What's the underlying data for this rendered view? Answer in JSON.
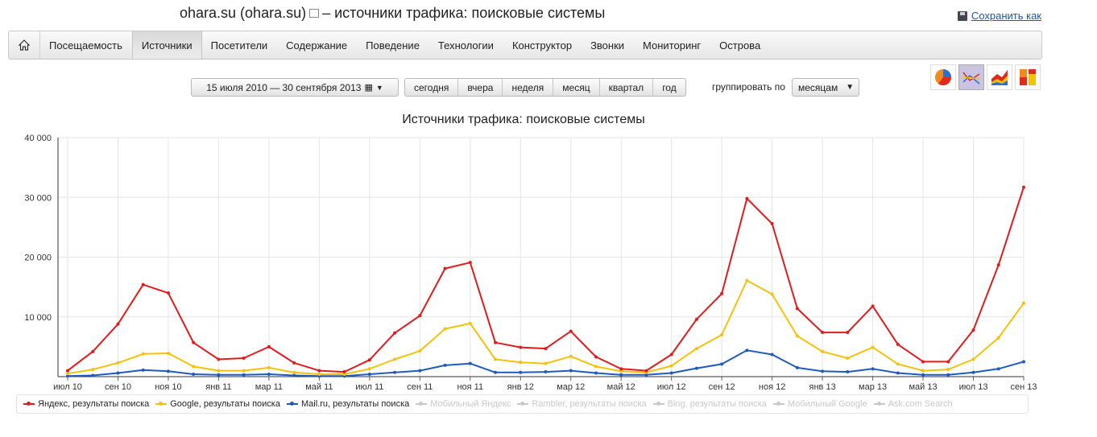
{
  "header": {
    "title": "ohara.su (ohara.su)",
    "title_suffix": "– источники трафика: поисковые системы",
    "save_label": "Сохранить как"
  },
  "nav": {
    "items": [
      {
        "label": "Посещаемость",
        "active": false
      },
      {
        "label": "Источники",
        "active": true
      },
      {
        "label": "Посетители",
        "active": false
      },
      {
        "label": "Содержание",
        "active": false
      },
      {
        "label": "Поведение",
        "active": false
      },
      {
        "label": "Технологии",
        "active": false
      },
      {
        "label": "Конструктор",
        "active": false
      },
      {
        "label": "Звонки",
        "active": false
      },
      {
        "label": "Мониторинг",
        "active": false
      },
      {
        "label": "Острова",
        "active": false
      }
    ]
  },
  "toolbar": {
    "date_range": "15 июля 2010 — 30 сентября 2013",
    "periods": [
      "сегодня",
      "вчера",
      "неделя",
      "месяц",
      "квартал",
      "год"
    ],
    "group_label": "группировать по",
    "group_value": "месяцам"
  },
  "chart_data": {
    "type": "line",
    "title": "Источники трафика: поисковые системы",
    "ylim": [
      0,
      40000
    ],
    "yticks": [
      "0",
      "10 000",
      "20 000",
      "30 000",
      "40 000"
    ],
    "xticklabels": [
      "июл 10",
      "сен 10",
      "ноя 10",
      "янв 11",
      "мар 11",
      "май 11",
      "июл 11",
      "сен 11",
      "ноя 11",
      "янв 12",
      "мар 12",
      "май 12",
      "июл 12",
      "сен 12",
      "ноя 12",
      "янв 13",
      "мар 13",
      "май 13",
      "июл 13",
      "сен 13"
    ],
    "categories": [
      "2010-07",
      "2010-08",
      "2010-09",
      "2010-10",
      "2010-11",
      "2010-12",
      "2011-01",
      "2011-02",
      "2011-03",
      "2011-04",
      "2011-05",
      "2011-06",
      "2011-07",
      "2011-08",
      "2011-09",
      "2011-10",
      "2011-11",
      "2011-12",
      "2012-01",
      "2012-02",
      "2012-03",
      "2012-04",
      "2012-05",
      "2012-06",
      "2012-07",
      "2012-08",
      "2012-09",
      "2012-10",
      "2012-11",
      "2012-12",
      "2013-01",
      "2013-02",
      "2013-03",
      "2013-04",
      "2013-05",
      "2013-06",
      "2013-07",
      "2013-08",
      "2013-09"
    ],
    "series": [
      {
        "name": "Яндекс, результаты поиска",
        "color": "#e31a1c",
        "values": [
          1000,
          4200,
          8800,
          15400,
          14000,
          5700,
          2900,
          3100,
          5000,
          2300,
          1000,
          800,
          2800,
          7300,
          10200,
          18100,
          19100,
          5700,
          4900,
          4700,
          7600,
          3300,
          1300,
          1000,
          3700,
          9600,
          13900,
          29800,
          25600,
          11400,
          7400,
          7400,
          11800,
          5400,
          2500,
          2500,
          7800,
          18700,
          31700
        ]
      },
      {
        "name": "Google, результаты поиска",
        "color": "#f5c20a",
        "values": [
          500,
          1200,
          2300,
          3800,
          3900,
          1700,
          1000,
          1000,
          1500,
          700,
          400,
          400,
          1300,
          2900,
          4300,
          8000,
          8900,
          2900,
          2400,
          2200,
          3400,
          1700,
          900,
          700,
          1800,
          4700,
          7000,
          16100,
          13800,
          6800,
          4200,
          3100,
          4900,
          2100,
          1000,
          1200,
          2900,
          6500,
          12300
        ]
      },
      {
        "name": "Mail.ru, результаты поиска",
        "color": "#1f5bbf",
        "values": [
          100,
          200,
          600,
          1100,
          900,
          400,
          300,
          300,
          400,
          200,
          100,
          100,
          400,
          700,
          1000,
          1900,
          2200,
          700,
          700,
          800,
          1000,
          600,
          300,
          300,
          600,
          1400,
          2100,
          4400,
          3700,
          1500,
          900,
          800,
          1300,
          600,
          300,
          300,
          700,
          1300,
          2500
        ]
      }
    ],
    "legend": [
      {
        "label": "Яндекс, результаты поиска",
        "color": "#e31a1c",
        "enabled": true
      },
      {
        "label": "Google, результаты поиска",
        "color": "#f5c20a",
        "enabled": true
      },
      {
        "label": "Mail.ru, результаты поиска",
        "color": "#1f5bbf",
        "enabled": true
      },
      {
        "label": "Мобильный Яндекс",
        "color": "#c8c8c8",
        "enabled": false
      },
      {
        "label": "Rambler, результаты поиска",
        "color": "#c8c8c8",
        "enabled": false
      },
      {
        "label": "Bing, результаты поиска",
        "color": "#c8c8c8",
        "enabled": false
      },
      {
        "label": "Мобильный Google",
        "color": "#c8c8c8",
        "enabled": false
      },
      {
        "label": "Ask.com Search",
        "color": "#c8c8c8",
        "enabled": false
      }
    ],
    "grid": true,
    "legend_position": "bottom"
  }
}
